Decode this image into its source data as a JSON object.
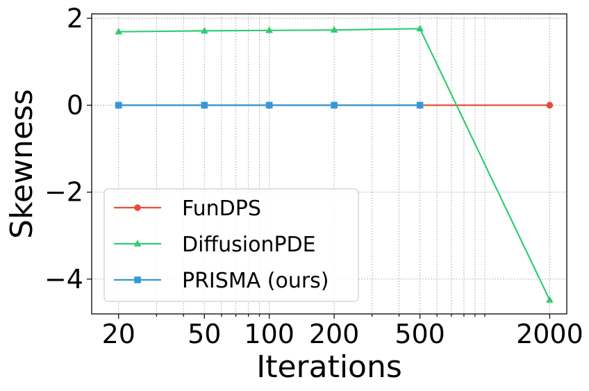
{
  "chart_data": {
    "type": "line",
    "xscale": "log",
    "x": [
      20,
      50,
      100,
      200,
      500,
      2000
    ],
    "xticks": [
      20,
      50,
      100,
      200,
      500,
      2000
    ],
    "xtick_labels": [
      "20",
      "50",
      "100",
      "200",
      "500",
      "2000"
    ],
    "xlim": [
      15,
      2400
    ],
    "yticks": [
      2,
      0,
      -2,
      -4
    ],
    "ytick_labels": [
      "2",
      "0",
      "−2",
      "−4"
    ],
    "ylim": [
      -4.8,
      2.1
    ],
    "xlabel": "Iterations",
    "ylabel": "Skewness",
    "grid": true,
    "legend_position": "lower-left",
    "series": [
      {
        "name": "FunDPS",
        "color": "#e74c3c",
        "marker": "circle",
        "x": [
          20,
          50,
          100,
          200,
          500,
          2000
        ],
        "values": [
          0.0,
          0.0,
          0.0,
          0.0,
          0.0,
          0.0
        ]
      },
      {
        "name": "DiffusionPDE",
        "color": "#2ecc71",
        "marker": "triangle",
        "x": [
          20,
          50,
          100,
          200,
          500,
          2000
        ],
        "values": [
          1.69,
          1.71,
          1.72,
          1.73,
          1.76,
          -4.48
        ]
      },
      {
        "name": "PRISMA (ours)",
        "color": "#3498db",
        "marker": "square",
        "x": [
          20,
          50,
          100,
          200,
          500
        ],
        "values": [
          0.0,
          0.0,
          0.0,
          0.0,
          0.0
        ]
      }
    ]
  }
}
